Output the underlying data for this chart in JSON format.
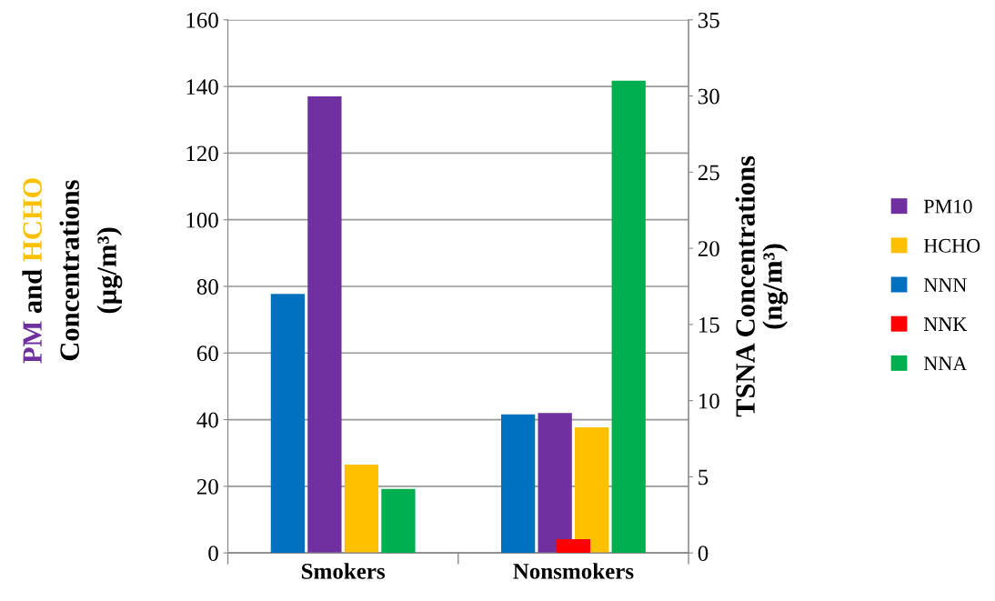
{
  "chart_data": {
    "type": "bar",
    "categories": [
      "Smokers",
      "Nonsmokers"
    ],
    "ylabel": "PM and HCHO\nConcentrations\n(µg/m³)",
    "y2label": "TSNA Concentrations\n(ng/m³)",
    "series": [
      {
        "name": "PM10",
        "color": "#7030a0",
        "values": [
          137,
          42
        ]
      },
      {
        "name": "HCHO",
        "color": "#ffc000",
        "values": [
          26.5,
          37.7
        ]
      },
      {
        "name": "NNN",
        "color": "#0070c0",
        "axis": "y2",
        "values": [
          17,
          9.1
        ]
      },
      {
        "name": "NNK",
        "color": "#ff0000",
        "axis": "y2",
        "values": [
          null,
          0.9
        ]
      },
      {
        "name": "NNA",
        "color": "#00b050",
        "axis": "y2",
        "values": [
          4.2,
          31
        ]
      }
    ],
    "ylim": [
      0,
      160
    ],
    "yticks": [
      0,
      20,
      40,
      60,
      80,
      100,
      120,
      140,
      160
    ],
    "y2lim": [
      0,
      35
    ],
    "y2ticks": [
      0,
      5,
      10,
      15,
      20,
      25,
      30,
      35
    ],
    "grid": "y",
    "legend": "right"
  }
}
